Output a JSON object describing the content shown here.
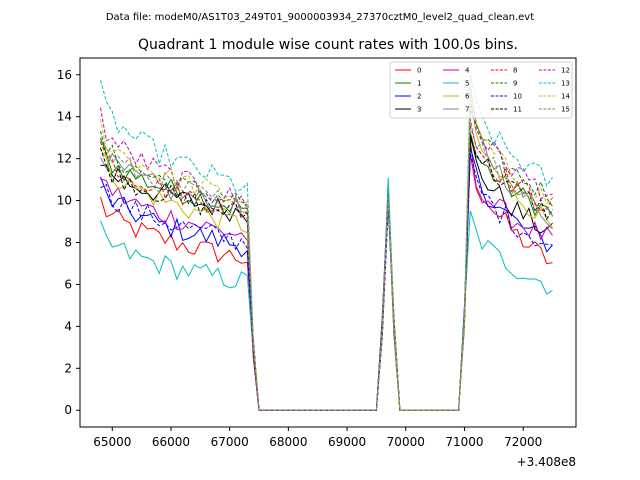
{
  "suptitle": "Data file: modeM0/AS1T03_249T01_9000003934_27370cztM0_level2_quad_clean.evt",
  "chart_data": {
    "type": "line",
    "title": "Quadrant 1 module wise count rates with 100.0s bins.",
    "xlabel": "",
    "ylabel": "",
    "x_offset_label": "+3.408e8",
    "xlim": [
      64450,
      72900
    ],
    "ylim": [
      -0.8,
      16.8
    ],
    "xticks": [
      65000,
      66000,
      67000,
      68000,
      69000,
      70000,
      71000,
      72000
    ],
    "yticks": [
      0,
      2,
      4,
      6,
      8,
      10,
      12,
      14,
      16
    ],
    "legend_position": "top-right",
    "series": [
      {
        "name": "0",
        "color": "#ff0000",
        "dash": false,
        "s0": 10.0,
        "s1": 7.2,
        "peak": 10.3,
        "s2": 12.5,
        "s3": 7.0
      },
      {
        "name": "1",
        "color": "#008000",
        "dash": false,
        "s0": 12.6,
        "s1": 9.6,
        "peak": 10.5,
        "s2": 13.2,
        "s3": 9.4
      },
      {
        "name": "2",
        "color": "#0000ff",
        "dash": false,
        "s0": 10.8,
        "s1": 7.8,
        "peak": 10.0,
        "s2": 12.4,
        "s3": 7.8
      },
      {
        "name": "3",
        "color": "#000000",
        "dash": false,
        "s0": 12.0,
        "s1": 9.4,
        "peak": 10.2,
        "s2": 12.9,
        "s3": 8.4
      },
      {
        "name": "4",
        "color": "#bf00bf",
        "dash": false,
        "s0": 11.3,
        "s1": 8.3,
        "peak": 10.6,
        "s2": 11.8,
        "s3": 8.1
      },
      {
        "name": "5",
        "color": "#00bfbf",
        "dash": false,
        "s0": 8.5,
        "s1": 6.1,
        "peak": 11.1,
        "s2": 9.3,
        "s3": 5.9
      },
      {
        "name": "6",
        "color": "#bfbf00",
        "dash": false,
        "s0": 12.3,
        "s1": 8.8,
        "peak": 10.1,
        "s2": 14.5,
        "s3": 8.9
      },
      {
        "name": "7",
        "color": "#808080",
        "dash": false,
        "s0": 12.6,
        "s1": 9.5,
        "peak": 10.4,
        "s2": 14.9,
        "s3": 9.1
      },
      {
        "name": "8",
        "color": "#ff0000",
        "dash": true,
        "s0": 12.7,
        "s1": 9.5,
        "peak": 10.0,
        "s2": 13.8,
        "s3": 9.7
      },
      {
        "name": "9",
        "color": "#008000",
        "dash": true,
        "s0": 13.0,
        "s1": 9.9,
        "peak": 10.3,
        "s2": 14.4,
        "s3": 10.2
      },
      {
        "name": "10",
        "color": "#0000ff",
        "dash": true,
        "s0": 11.0,
        "s1": 8.0,
        "peak": 9.6,
        "s2": 11.9,
        "s3": 7.8
      },
      {
        "name": "11",
        "color": "#000000",
        "dash": true,
        "s0": 12.2,
        "s1": 9.3,
        "peak": 10.2,
        "s2": 13.5,
        "s3": 9.4
      },
      {
        "name": "12",
        "color": "#bf00bf",
        "dash": true,
        "s0": 14.1,
        "s1": 9.9,
        "peak": 10.5,
        "s2": 14.7,
        "s3": 10.3
      },
      {
        "name": "13",
        "color": "#00bfbf",
        "dash": true,
        "s0": 15.2,
        "s1": 10.6,
        "peak": 10.8,
        "s2": 15.6,
        "s3": 10.8
      },
      {
        "name": "14",
        "color": "#bfbf00",
        "dash": true,
        "s0": 13.6,
        "s1": 10.0,
        "peak": 10.1,
        "s2": 14.8,
        "s3": 9.9
      },
      {
        "name": "15",
        "color": "#808080",
        "dash": true,
        "s0": 13.0,
        "s1": 9.7,
        "peak": 10.2,
        "s2": 14.2,
        "s3": 9.5
      }
    ],
    "segment_x": {
      "seg1_start": 64800,
      "seg1_end": 67300,
      "drop_end": 67400,
      "gap1_end": 67500,
      "gap1_stop": 69500,
      "peak_rise": 69600,
      "peak_x": 69700,
      "peak_fall": 69800,
      "gap2_start": 69900,
      "gap2_stop": 70900,
      "rise": 71000,
      "seg2_start": 71100,
      "seg2_end": 72500,
      "step": 100
    }
  }
}
